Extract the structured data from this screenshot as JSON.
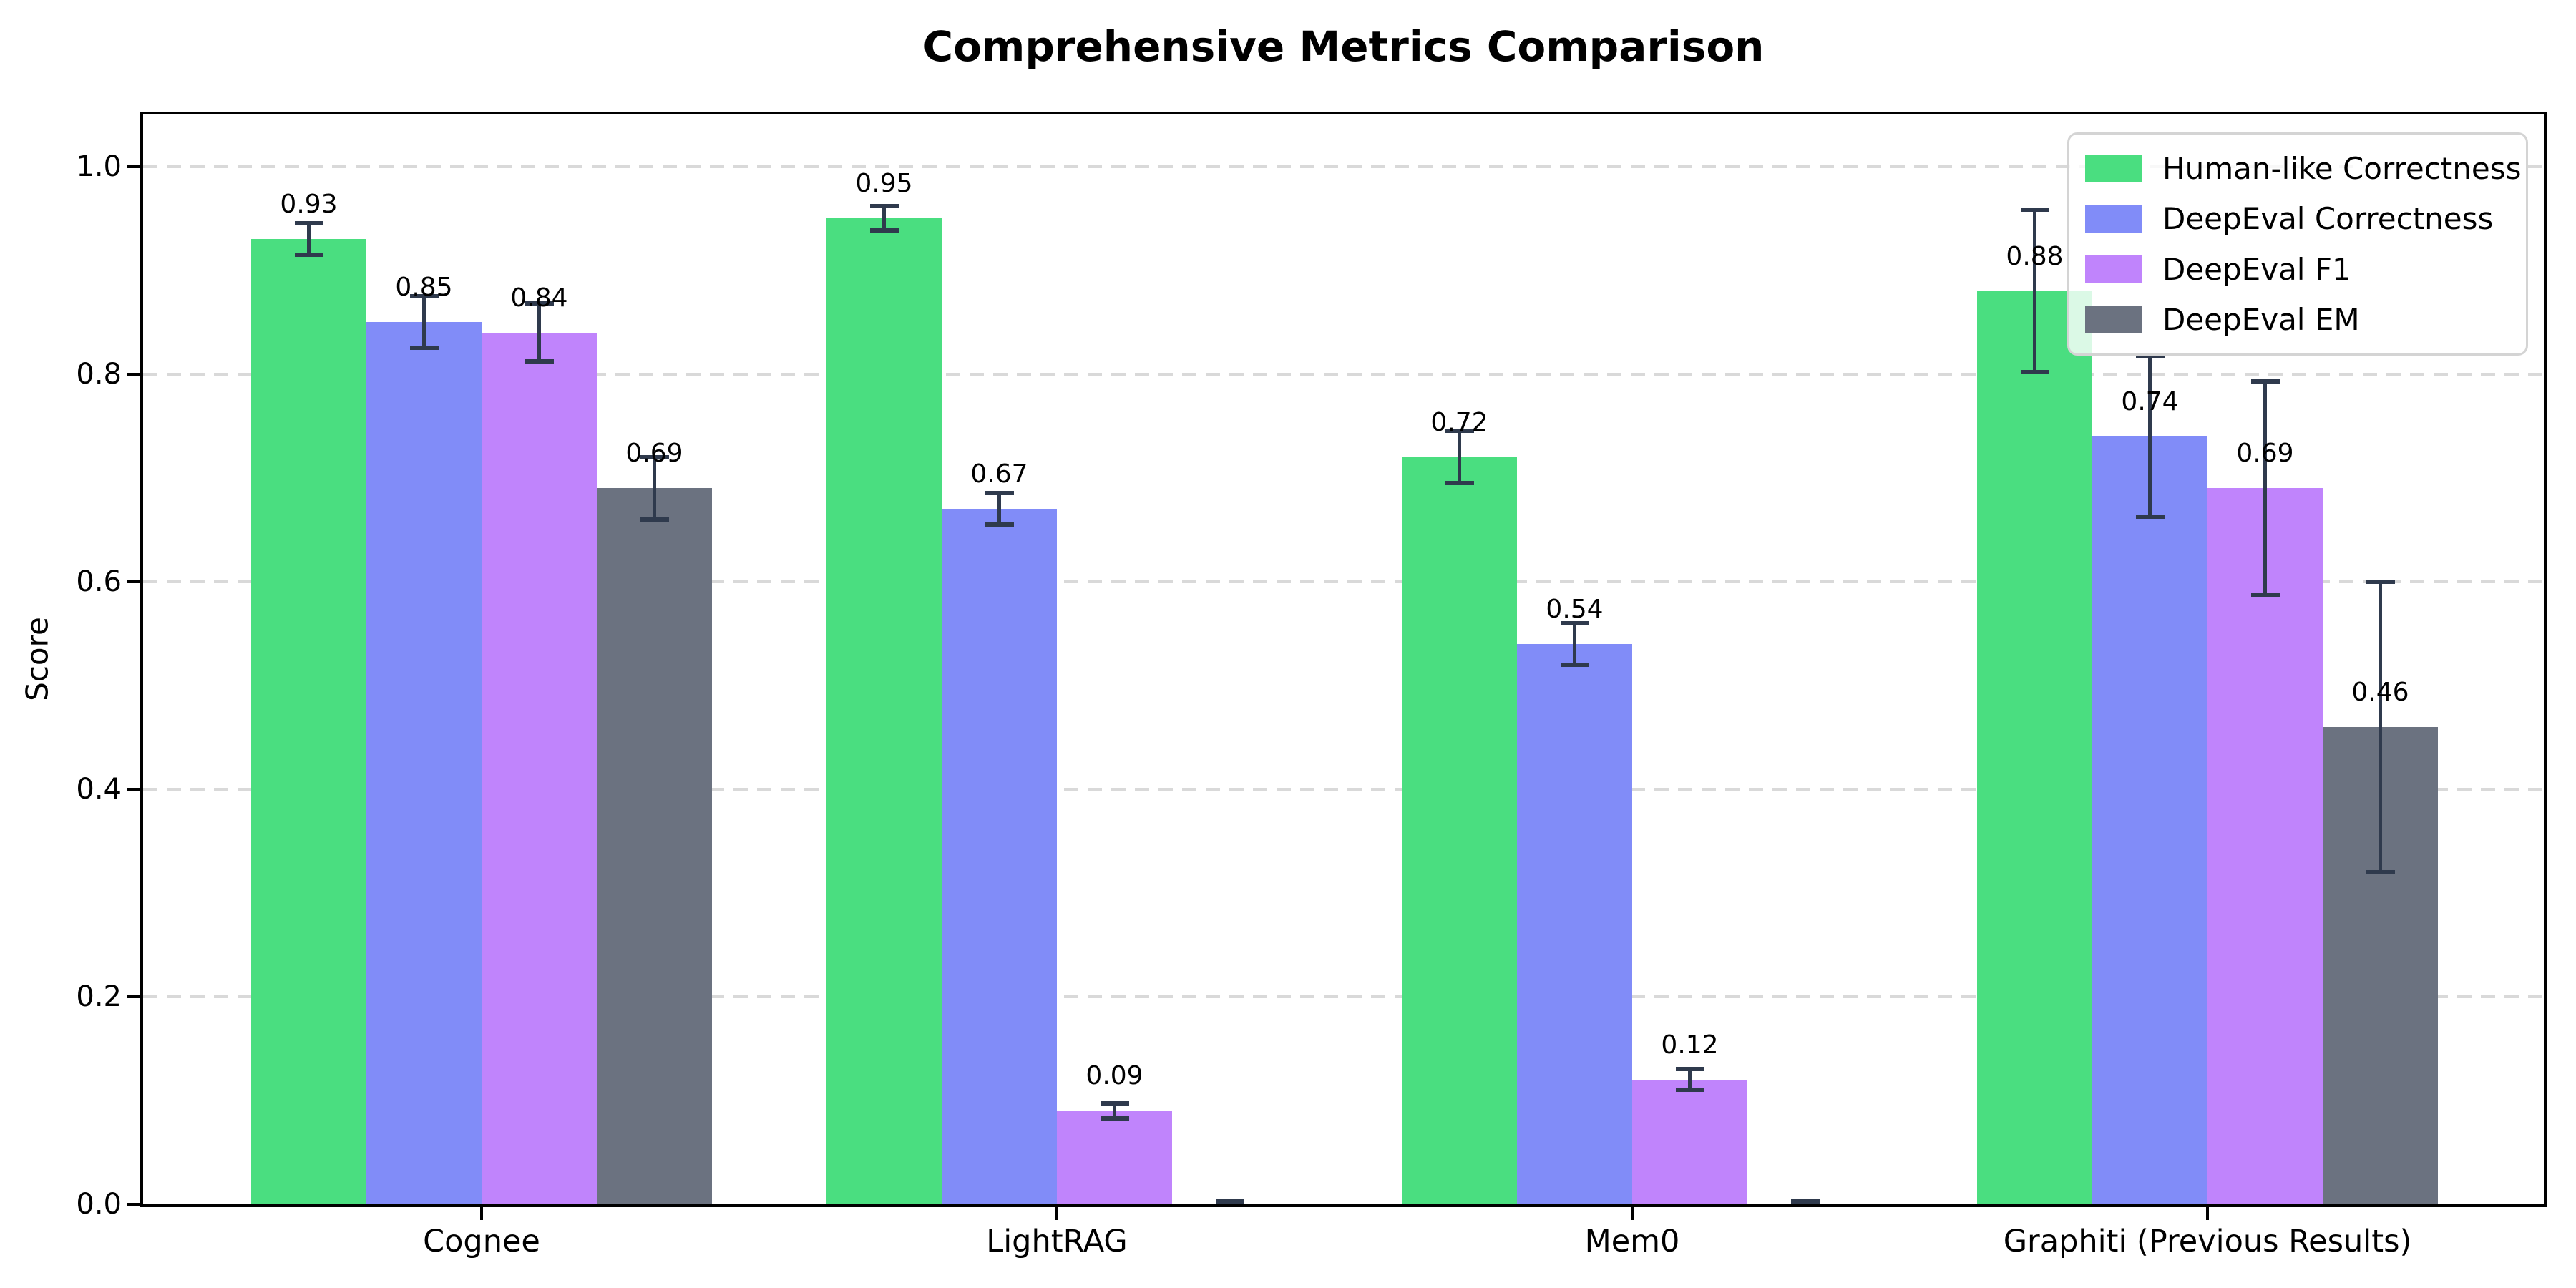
{
  "title": "Comprehensive Metrics Comparison",
  "axes": {
    "ylabel": "Score",
    "yticks": [
      0.0,
      0.2,
      0.4,
      0.6,
      0.8,
      1.0
    ],
    "ylim": [
      0,
      1.05
    ],
    "grid": "horizontal-dashed"
  },
  "colors": {
    "human_like": "#4ade80",
    "deepeval_correctness": "#818cf8",
    "deepeval_f1": "#c084fc",
    "deepeval_em": "#6b7280",
    "error_bar": "#2f3a4d",
    "gridline": "#d9d9d9",
    "spine": "#000000",
    "legend_border": "#d4d4d4"
  },
  "chart_data": {
    "type": "bar",
    "title": "Comprehensive Metrics Comparison",
    "xlabel": "",
    "ylabel": "Score",
    "ylim": [
      0,
      1.05
    ],
    "grid": true,
    "legend_position": "upper right",
    "bar_width_units": 0.2,
    "categories": [
      "Cognee",
      "LightRAG",
      "Mem0",
      "Graphiti (Previous Results)"
    ],
    "series": [
      {
        "name": "Human-like Correctness",
        "color": "#4ade80",
        "values": [
          0.93,
          0.95,
          0.72,
          0.88
        ],
        "errors": [
          0.015,
          0.012,
          0.025,
          0.078
        ]
      },
      {
        "name": "DeepEval Correctness",
        "color": "#818cf8",
        "values": [
          0.85,
          0.67,
          0.54,
          0.74
        ],
        "errors": [
          0.025,
          0.015,
          0.02,
          0.078
        ]
      },
      {
        "name": "DeepEval F1",
        "color": "#c084fc",
        "values": [
          0.84,
          0.09,
          0.12,
          0.69
        ],
        "errors": [
          0.028,
          0.007,
          0.01,
          0.103
        ]
      },
      {
        "name": "DeepEval EM",
        "color": "#6b7280",
        "values": [
          0.69,
          0.0,
          0.0,
          0.46
        ],
        "errors": [
          0.03,
          0.003,
          0.003,
          0.14
        ]
      }
    ],
    "value_label_format": "0.00",
    "zero_values_unlabeled": true
  }
}
